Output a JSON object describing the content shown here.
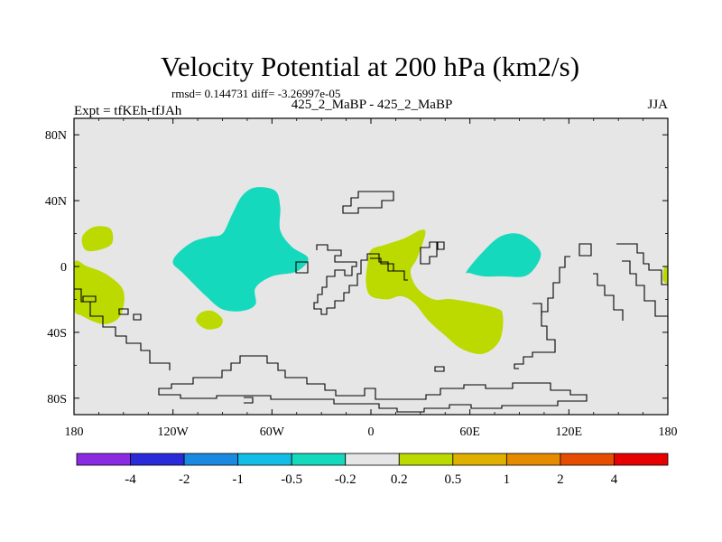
{
  "chart_data": {
    "type": "heatmap",
    "title": "Velocity Potential at 200 hPa (km2/s)",
    "stats_text": "rmsd= 0.144731  diff= -3.26997e-05",
    "left_label": "Expt = tfKEh-tfJAh",
    "center_label": "425_2_MaBP - 425_2_MaBP",
    "right_label": "JJA",
    "x_ticks": [
      {
        "lon": -180,
        "label": "180"
      },
      {
        "lon": -120,
        "label": "120W"
      },
      {
        "lon": -60,
        "label": "60W"
      },
      {
        "lon": 0,
        "label": "0"
      },
      {
        "lon": 60,
        "label": "60E"
      },
      {
        "lon": 120,
        "label": "120E"
      },
      {
        "lon": 180,
        "label": "180"
      }
    ],
    "y_ticks": [
      {
        "lat": 80,
        "label": "80N"
      },
      {
        "lat": 40,
        "label": "40N"
      },
      {
        "lat": 0,
        "label": "0"
      },
      {
        "lat": -40,
        "label": "40S"
      },
      {
        "lat": -80,
        "label": "80S"
      }
    ],
    "xlim": [
      -180,
      180
    ],
    "ylim": [
      -90,
      90
    ],
    "colorbar": {
      "colors": [
        "#8a2be2",
        "#2a2ad9",
        "#1a8ae0",
        "#14bde6",
        "#14d9bd",
        "#e6e6e6",
        "#bcd900",
        "#e0b000",
        "#e68a00",
        "#e64d00",
        "#e60000"
      ],
      "labels": [
        "-4",
        "-2",
        "-1",
        "-0.5",
        "-0.2",
        "0.2",
        "0.5",
        "1",
        "2",
        "4"
      ]
    },
    "background_color": "#e6e6e6",
    "regions": [
      {
        "sign": "negative",
        "color": "#14d9bd",
        "points": [
          [
            -117,
            8
          ],
          [
            -108,
            15
          ],
          [
            -98,
            18
          ],
          [
            -90,
            20
          ],
          [
            -84,
            32
          ],
          [
            -78,
            43
          ],
          [
            -70,
            48
          ],
          [
            -58,
            46
          ],
          [
            -55,
            36
          ],
          [
            -55,
            22
          ],
          [
            -48,
            12
          ],
          [
            -38,
            5
          ],
          [
            -45,
            -3
          ],
          [
            -60,
            -6
          ],
          [
            -70,
            -13
          ],
          [
            -70,
            -23
          ],
          [
            -78,
            -27
          ],
          [
            -90,
            -26
          ],
          [
            -100,
            -18
          ],
          [
            -114,
            -4
          ],
          [
            -120,
            2
          ]
        ]
      },
      {
        "sign": "negative",
        "color": "#14d9bd",
        "points": [
          [
            58,
            -3
          ],
          [
            67,
            8
          ],
          [
            78,
            18
          ],
          [
            89,
            20
          ],
          [
            98,
            15
          ],
          [
            103,
            8
          ],
          [
            100,
            0
          ],
          [
            93,
            -6
          ],
          [
            80,
            -6
          ],
          [
            68,
            -6
          ],
          [
            60,
            -4
          ]
        ]
      },
      {
        "sign": "positive",
        "color": "#bcd900",
        "points": [
          [
            -175,
            18
          ],
          [
            -168,
            24
          ],
          [
            -158,
            23
          ],
          [
            -157,
            14
          ],
          [
            -165,
            10
          ],
          [
            -173,
            10
          ]
        ]
      },
      {
        "sign": "positive",
        "color": "#bcd900",
        "points": [
          [
            -180,
            2
          ],
          [
            -172,
            0
          ],
          [
            -160,
            -5
          ],
          [
            -150,
            -15
          ],
          [
            -152,
            -30
          ],
          [
            -162,
            -35
          ],
          [
            -175,
            -30
          ],
          [
            -180,
            -25
          ]
        ]
      },
      {
        "sign": "positive",
        "color": "#bcd900",
        "points": [
          [
            -103,
            -28
          ],
          [
            -96,
            -27
          ],
          [
            -90,
            -32
          ],
          [
            -92,
            -37
          ],
          [
            -100,
            -38
          ],
          [
            -106,
            -33
          ]
        ]
      },
      {
        "sign": "positive",
        "color": "#bcd900",
        "points": [
          [
            0,
            10
          ],
          [
            8,
            13
          ],
          [
            20,
            17
          ],
          [
            30,
            22
          ],
          [
            33,
            20
          ],
          [
            28,
            5
          ],
          [
            24,
            -3
          ],
          [
            28,
            -13
          ],
          [
            38,
            -20
          ],
          [
            50,
            -20
          ],
          [
            75,
            -25
          ],
          [
            80,
            -30
          ],
          [
            78,
            -45
          ],
          [
            68,
            -53
          ],
          [
            55,
            -50
          ],
          [
            45,
            -42
          ],
          [
            35,
            -33
          ],
          [
            26,
            -22
          ],
          [
            18,
            -18
          ],
          [
            10,
            -20
          ],
          [
            0,
            -18
          ],
          [
            -3,
            -10
          ],
          [
            -2,
            2
          ]
        ]
      },
      {
        "sign": "positive",
        "color": "#bcd900",
        "points": [
          [
            178,
            0
          ],
          [
            180,
            -2
          ],
          [
            180,
            -10
          ],
          [
            177,
            -8
          ]
        ]
      }
    ]
  }
}
